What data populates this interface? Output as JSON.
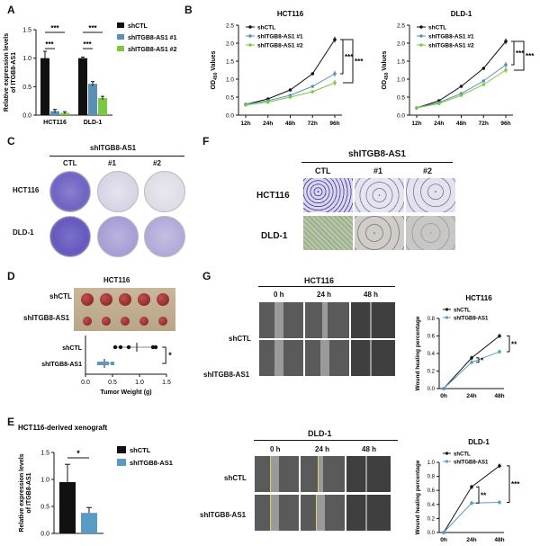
{
  "colors": {
    "shctl": "#111111",
    "sh1": "#5b8fb5",
    "sh2": "#7ac943",
    "sh": "#5a9bc4",
    "stain": "#6a5acd",
    "wound_line": "#d6d36a"
  },
  "panels": {
    "A": "A",
    "B": "B",
    "C": "C",
    "D": "D",
    "E": "E",
    "F": "F",
    "G": "G"
  },
  "panelA": {
    "ylabel": "Relative expression levels of ITGB8-AS1",
    "sig": [
      "***",
      "***",
      "***",
      "***"
    ],
    "legend": [
      "shCTL",
      "shITGB8-AS1 #1",
      "shITGB8-AS1 #2"
    ],
    "chart_data": {
      "type": "bar",
      "categories": [
        "HCT116",
        "DLD-1"
      ],
      "series": [
        {
          "name": "shCTL",
          "values": [
            1.0,
            1.0
          ]
        },
        {
          "name": "shITGB8-AS1 #1",
          "values": [
            0.07,
            0.55
          ]
        },
        {
          "name": "shITGB8-AS1 #2",
          "values": [
            0.04,
            0.3
          ]
        }
      ],
      "ylim": [
        0,
        1.5
      ],
      "yticks": [
        "0.0",
        "0.5",
        "1.0",
        "1.5"
      ]
    }
  },
  "panelB": {
    "ylabel": "OD450 Values",
    "ylabel_main": "OD",
    "ylabel_sub": "450",
    "ylabel_rest": " Values",
    "sig": "***",
    "legend": [
      "shCTL",
      "shITGB8-AS1 #1",
      "shITGB8-AS1 #2"
    ],
    "chart_data": [
      {
        "type": "line",
        "title": "HCT116",
        "x": [
          "12h",
          "24h",
          "48h",
          "72h",
          "96h"
        ],
        "series": [
          {
            "name": "shCTL",
            "values": [
              0.3,
              0.45,
              0.7,
              1.15,
              2.1
            ]
          },
          {
            "name": "shITGB8-AS1 #1",
            "values": [
              0.3,
              0.4,
              0.55,
              0.8,
              1.15
            ]
          },
          {
            "name": "shITGB8-AS1 #2",
            "values": [
              0.28,
              0.36,
              0.5,
              0.65,
              0.9
            ]
          }
        ],
        "ylim": [
          0,
          2.5
        ],
        "yticks": [
          "0.0",
          "0.5",
          "1.0",
          "1.5",
          "2.0",
          "2.5"
        ]
      },
      {
        "type": "line",
        "title": "DLD-1",
        "x": [
          "12h",
          "24h",
          "48h",
          "72h",
          "96h"
        ],
        "series": [
          {
            "name": "shCTL",
            "values": [
              0.2,
              0.4,
              0.8,
              1.3,
              2.05
            ]
          },
          {
            "name": "shITGB8-AS1 #1",
            "values": [
              0.2,
              0.35,
              0.6,
              0.95,
              1.4
            ]
          },
          {
            "name": "shITGB8-AS1 #2",
            "values": [
              0.2,
              0.32,
              0.55,
              0.85,
              1.25
            ]
          }
        ],
        "ylim": [
          0,
          2.5
        ],
        "yticks": [
          "0.0",
          "0.5",
          "1.0",
          "1.5",
          "2.0",
          "2.5"
        ]
      }
    ]
  },
  "panelC": {
    "header": "shITGB8-AS1",
    "cols": [
      "CTL",
      "#1",
      "#2"
    ],
    "rows": [
      "HCT116",
      "DLD-1"
    ]
  },
  "panelF": {
    "header": "shITGB8-AS1",
    "cols": [
      "CTL",
      "#1",
      "#2"
    ],
    "rows": [
      "HCT116",
      "DLD-1"
    ]
  },
  "panelD": {
    "title": "HCT116",
    "rows": [
      "shCTL",
      "shITGB8-AS1"
    ],
    "xlabel": "Tumor Weight (g)",
    "sig": "*",
    "chart_data": {
      "type": "scatter",
      "categories": [
        "shCTL",
        "shITGB8-AS1"
      ],
      "series": [
        {
          "name": "shCTL",
          "values": [
            0.55,
            0.65,
            0.8,
            1.25,
            1.3
          ],
          "mean": 0.95
        },
        {
          "name": "shITGB8-AS1",
          "values": [
            0.25,
            0.3,
            0.35,
            0.4,
            0.5
          ],
          "mean": 0.35
        }
      ],
      "xlim": [
        0,
        1.5
      ],
      "xticks": [
        "0.0",
        "0.5",
        "1.0",
        "1.5"
      ]
    }
  },
  "panelE": {
    "title": "HCT116-derived xenograft",
    "ylabel": "Relative expression levels of ITGB8-AS1",
    "sig": "*",
    "legend": [
      "shCTL",
      "shITGB8-AS1"
    ],
    "chart_data": {
      "type": "bar",
      "categories": [
        "shCTL",
        "shITGB8-AS1"
      ],
      "values": [
        0.95,
        0.38
      ],
      "ylim": [
        0,
        1.5
      ],
      "yticks": [
        "0.0",
        "0.5",
        "1.0",
        "1.5"
      ]
    }
  },
  "panelG": {
    "titles": [
      "HCT116",
      "DLD-1"
    ],
    "times": [
      "0 h",
      "24 h",
      "48 h"
    ],
    "rows": [
      "shCTL",
      "shITGB8-AS1"
    ],
    "ylabel": "Wound healing percentage",
    "legend": [
      "shCTL",
      "shITGB8-AS1"
    ],
    "sig_top": [
      "*",
      "**"
    ],
    "sig_bot": [
      "**",
      "***"
    ],
    "chart_data": [
      {
        "type": "line",
        "title": "HCT116",
        "x": [
          "0h",
          "24h",
          "48h"
        ],
        "series": [
          {
            "name": "shCTL",
            "values": [
              0,
              0.35,
              0.6
            ]
          },
          {
            "name": "shITGB8-AS1",
            "values": [
              0,
              0.3,
              0.42
            ]
          }
        ],
        "ylim": [
          0,
          0.8
        ],
        "yticks": [
          "0.0",
          "0.2",
          "0.4",
          "0.6",
          "0.8"
        ]
      },
      {
        "type": "line",
        "title": "DLD-1",
        "x": [
          "0h",
          "24h",
          "48h"
        ],
        "series": [
          {
            "name": "shCTL",
            "values": [
              0,
              0.65,
              0.95
            ]
          },
          {
            "name": "shITGB8-AS1",
            "values": [
              0,
              0.42,
              0.43
            ]
          }
        ],
        "ylim": [
          0,
          1.0
        ],
        "yticks": [
          "0.0",
          "0.2",
          "0.4",
          "0.6",
          "0.8",
          "1.0"
        ]
      }
    ]
  }
}
